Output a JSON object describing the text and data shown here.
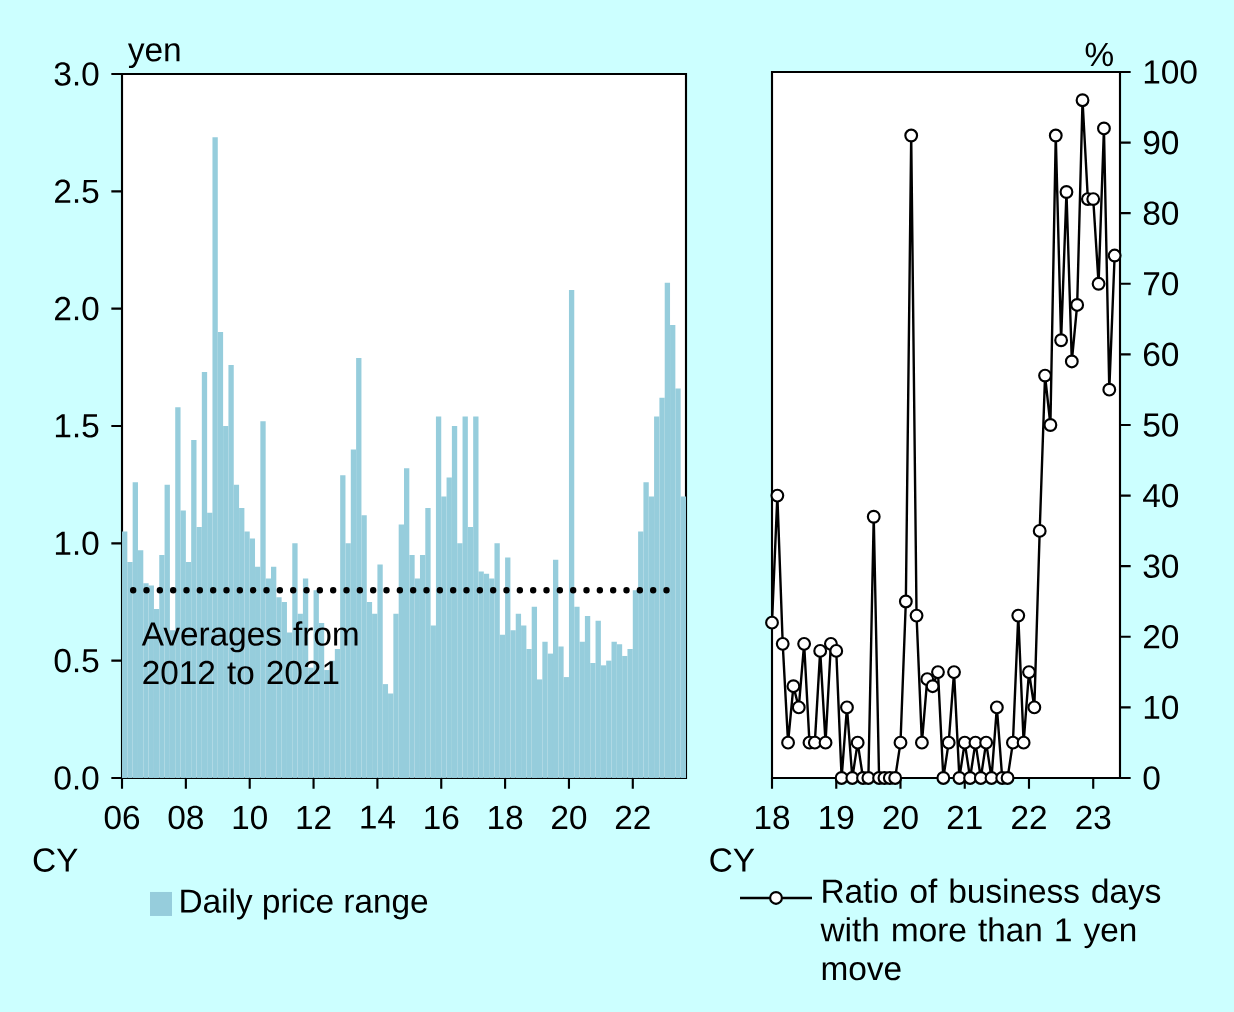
{
  "chart_data": [
    {
      "type": "bar",
      "xlabel": "CY",
      "ylabel": "yen",
      "legend": "bottom",
      "x": [
        "2006-01",
        "2006-03",
        "2006-05",
        "2006-07",
        "2006-09",
        "2006-11",
        "2007-01",
        "2007-03",
        "2007-05",
        "2007-07",
        "2007-09",
        "2007-11",
        "2008-01",
        "2008-03",
        "2008-05",
        "2008-07",
        "2008-09",
        "2008-11",
        "2009-01",
        "2009-03",
        "2009-05",
        "2009-07",
        "2009-09",
        "2009-11",
        "2010-01",
        "2010-03",
        "2010-05",
        "2010-07",
        "2010-09",
        "2010-11",
        "2011-01",
        "2011-03",
        "2011-05",
        "2011-07",
        "2011-09",
        "2011-11",
        "2012-01",
        "2012-03",
        "2012-05",
        "2012-07",
        "2012-09",
        "2012-11",
        "2013-01",
        "2013-03",
        "2013-05",
        "2013-07",
        "2013-09",
        "2013-11",
        "2014-01",
        "2014-03",
        "2014-05",
        "2014-07",
        "2014-09",
        "2014-11",
        "2015-01",
        "2015-03",
        "2015-05",
        "2015-07",
        "2015-09",
        "2015-11",
        "2016-01",
        "2016-03",
        "2016-05",
        "2016-07",
        "2016-09",
        "2016-11",
        "2017-01",
        "2017-03",
        "2017-05",
        "2017-07",
        "2017-09",
        "2017-11",
        "2018-01",
        "2018-03",
        "2018-05",
        "2018-07",
        "2018-09",
        "2018-11",
        "2019-01",
        "2019-03",
        "2019-05",
        "2019-07",
        "2019-09",
        "2019-11",
        "2020-01",
        "2020-03",
        "2020-05",
        "2020-07",
        "2020-09",
        "2020-11",
        "2021-01",
        "2021-03",
        "2021-05",
        "2021-07",
        "2021-09",
        "2021-11",
        "2022-01",
        "2022-03",
        "2022-05",
        "2022-07",
        "2022-09",
        "2022-11",
        "2023-01",
        "2023-03",
        "2023-05",
        "2023-07"
      ],
      "series": [
        {
          "name": "Daily price range",
          "color": "#96cddc",
          "values": [
            1.05,
            0.92,
            1.26,
            0.97,
            0.83,
            0.82,
            0.72,
            0.95,
            1.25,
            0.63,
            1.58,
            1.14,
            0.92,
            1.44,
            1.07,
            1.73,
            1.13,
            2.73,
            1.9,
            1.5,
            1.76,
            1.25,
            1.15,
            1.05,
            1.02,
            0.9,
            1.52,
            0.85,
            0.9,
            0.77,
            0.75,
            0.62,
            1.0,
            0.7,
            0.85,
            0.47,
            0.8,
            0.66,
            0.46,
            0.5,
            0.55,
            1.29,
            1.0,
            1.4,
            1.79,
            1.12,
            0.75,
            0.7,
            0.91,
            0.4,
            0.36,
            0.7,
            1.08,
            1.32,
            0.95,
            0.85,
            0.95,
            1.15,
            0.65,
            1.54,
            1.2,
            1.28,
            1.5,
            1.0,
            1.54,
            1.07,
            1.54,
            0.88,
            0.87,
            0.85,
            1.0,
            0.61,
            0.94,
            0.63,
            0.7,
            0.65,
            0.55,
            0.73,
            0.42,
            0.58,
            0.53,
            0.93,
            0.56,
            0.43,
            2.08,
            0.73,
            0.58,
            0.69,
            0.49,
            0.67,
            0.48,
            0.5,
            0.58,
            0.57,
            0.52,
            0.55,
            0.8,
            1.05,
            1.26,
            1.2,
            1.54,
            1.62,
            2.11,
            1.93,
            1.66,
            1.2
          ]
        }
      ],
      "ref_lines": [
        {
          "axis": "y",
          "value": 0.8,
          "label": "Averages from 2012 to 2021",
          "color": "#000000",
          "line_style": "dotted"
        }
      ],
      "xlim": [
        "2006-01",
        "2023-09"
      ],
      "ylim": [
        0,
        3
      ],
      "xticks": [
        {
          "value": "2006-01",
          "label": "06"
        },
        {
          "value": "2008-01",
          "label": "08"
        },
        {
          "value": "2010-01",
          "label": "10"
        },
        {
          "value": "2012-01",
          "label": "12"
        },
        {
          "value": "2014-01",
          "label": "14"
        },
        {
          "value": "2016-01",
          "label": "16"
        },
        {
          "value": "2018-01",
          "label": "18"
        },
        {
          "value": "2020-01",
          "label": "20"
        },
        {
          "value": "2022-01",
          "label": "22"
        }
      ],
      "yticks": [
        {
          "value": 0,
          "label": "0.0"
        },
        {
          "value": 0.5,
          "label": "0.5"
        },
        {
          "value": 1,
          "label": "1.0"
        },
        {
          "value": 1.5,
          "label": "1.5"
        },
        {
          "value": 2,
          "label": "2.0"
        },
        {
          "value": 2.5,
          "label": "2.5"
        },
        {
          "value": 3,
          "label": "3.0"
        }
      ]
    },
    {
      "type": "line",
      "xlabel": "CY",
      "ylabel": "%",
      "legend": "bottom",
      "marker": "circle",
      "line_style": "solid",
      "x": [
        "2018-01",
        "2018-02",
        "2018-03",
        "2018-04",
        "2018-05",
        "2018-06",
        "2018-07",
        "2018-08",
        "2018-09",
        "2018-10",
        "2018-11",
        "2018-12",
        "2019-01",
        "2019-02",
        "2019-03",
        "2019-04",
        "2019-05",
        "2019-06",
        "2019-07",
        "2019-08",
        "2019-09",
        "2019-10",
        "2019-11",
        "2019-12",
        "2020-01",
        "2020-02",
        "2020-03",
        "2020-04",
        "2020-05",
        "2020-06",
        "2020-07",
        "2020-08",
        "2020-09",
        "2020-10",
        "2020-11",
        "2020-12",
        "2021-01",
        "2021-02",
        "2021-03",
        "2021-04",
        "2021-05",
        "2021-06",
        "2021-07",
        "2021-08",
        "2021-09",
        "2021-10",
        "2021-11",
        "2021-12",
        "2022-01",
        "2022-02",
        "2022-03",
        "2022-04",
        "2022-05",
        "2022-06",
        "2022-07",
        "2022-08",
        "2022-09",
        "2022-10",
        "2022-11",
        "2022-12",
        "2023-01",
        "2023-02",
        "2023-03",
        "2023-04",
        "2023-05"
      ],
      "series": [
        {
          "name": "Ratio of business days with more than 1 yen move",
          "color": "#000000",
          "values": [
            22,
            40,
            19,
            5,
            13,
            10,
            19,
            5,
            5,
            18,
            5,
            19,
            18,
            0,
            10,
            0,
            5,
            0,
            0,
            37,
            0,
            0,
            0,
            0,
            5,
            25,
            91,
            23,
            5,
            14,
            13,
            15,
            0,
            5,
            15,
            0,
            5,
            0,
            5,
            0,
            5,
            0,
            10,
            0,
            0,
            5,
            23,
            5,
            15,
            10,
            35,
            57,
            50,
            91,
            62,
            83,
            59,
            67,
            96,
            82,
            82,
            70,
            92,
            55,
            74
          ]
        }
      ],
      "xlim": [
        "2018-01",
        "2023-06"
      ],
      "ylim": [
        0,
        100
      ],
      "xticks": [
        {
          "value": "2018-01",
          "label": "18"
        },
        {
          "value": "2019-01",
          "label": "19"
        },
        {
          "value": "2020-01",
          "label": "20"
        },
        {
          "value": "2021-01",
          "label": "21"
        },
        {
          "value": "2022-01",
          "label": "22"
        },
        {
          "value": "2023-01",
          "label": "23"
        }
      ],
      "yticks": [
        0,
        10,
        20,
        30,
        40,
        50,
        60,
        70,
        80,
        90,
        100
      ]
    }
  ]
}
